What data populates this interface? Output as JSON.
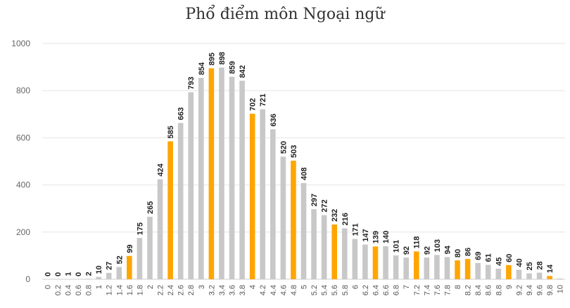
{
  "chart_data": {
    "type": "bar",
    "title": "Phổ điểm môn Ngoại ngữ",
    "xlabel": "",
    "ylabel": "",
    "ylim": [
      0,
      1000
    ],
    "yticks": [
      0,
      200,
      400,
      600,
      800,
      1000
    ],
    "grid": true,
    "categories": [
      "0",
      "0.2",
      "0.4",
      "0.6",
      "0.8",
      "1",
      "1.2",
      "1.4",
      "1.6",
      "1.8",
      "2",
      "2.2",
      "2.4",
      "2.6",
      "2.8",
      "3",
      "3.2",
      "3.4",
      "3.6",
      "3.8",
      "4",
      "4.2",
      "4.4",
      "4.6",
      "4.8",
      "5",
      "5.2",
      "5.4",
      "5.6",
      "5.8",
      "6",
      "6.2",
      "6.4",
      "6.6",
      "6.8",
      "7",
      "7.2",
      "7.4",
      "7.6",
      "7.8",
      "8",
      "8.2",
      "8.4",
      "8.6",
      "8.8",
      "9",
      "9.2",
      "9.4",
      "9.6",
      "9.8",
      "10"
    ],
    "values": [
      0,
      0,
      1,
      0,
      2,
      10,
      27,
      52,
      99,
      175,
      265,
      424,
      585,
      663,
      793,
      854,
      895,
      898,
      859,
      842,
      702,
      721,
      636,
      520,
      503,
      408,
      297,
      272,
      232,
      216,
      171,
      147,
      139,
      140,
      101,
      92,
      118,
      92,
      103,
      94,
      80,
      86,
      69,
      61,
      45,
      60,
      40,
      25,
      28,
      14,
      3
    ],
    "data_labels": [
      "0",
      "0",
      "1",
      "0",
      "2",
      "10",
      "27",
      "52",
      "99",
      "175",
      "265",
      "424",
      "585",
      "663",
      "793",
      "854",
      "895",
      "898",
      "859",
      "842",
      "702",
      "721",
      "636",
      "520",
      "503",
      "408",
      "297",
      "272",
      "232",
      "216",
      "171",
      "147",
      "139",
      "140",
      "101",
      "92",
      "118",
      "92",
      "103",
      "94",
      "80",
      "86",
      "69",
      "61",
      "45",
      "60",
      "40",
      "25",
      "28",
      "14",
      ""
    ],
    "highlight_categories": [
      "1.6",
      "2.4",
      "3.2",
      "4",
      "4.8",
      "5.6",
      "6.4",
      "7.2",
      "8",
      "8.2",
      "9",
      "9.8"
    ],
    "colors": {
      "bar": "#c8c8c8",
      "highlight": "#ffa500",
      "grid": "#e6e6e6",
      "axis": "#cccccc"
    }
  }
}
